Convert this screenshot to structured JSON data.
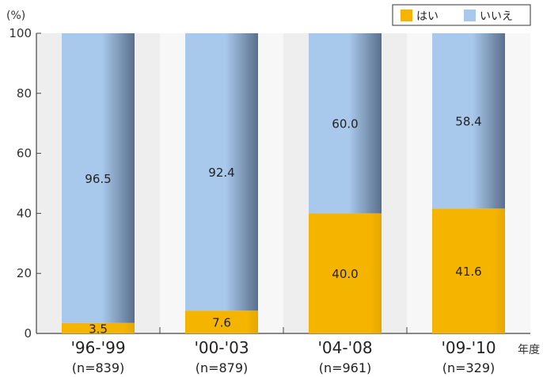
{
  "chart_data": {
    "type": "bar",
    "stacked": true,
    "y_unit": "(%)",
    "x_unit": "年度",
    "ylim": [
      0,
      100
    ],
    "y_ticks": [
      "0",
      "20",
      "40",
      "60",
      "80",
      "100"
    ],
    "categories": [
      "'96-'99",
      "'00-'03",
      "'04-'08",
      "'09-'10"
    ],
    "sample_sizes": [
      "(n=839)",
      "(n=879)",
      "(n=961)",
      "(n=329)"
    ],
    "series": [
      {
        "name": "はい",
        "color": "#f5b400",
        "values": [
          3.5,
          7.6,
          40.0,
          41.6
        ],
        "labels": [
          "3.5",
          "7.6",
          "40.0",
          "41.6"
        ]
      },
      {
        "name": "いいえ",
        "color": "#a9c9ec",
        "values": [
          96.5,
          92.4,
          60.0,
          58.4
        ],
        "labels": [
          "96.5",
          "92.4",
          "60.0",
          "58.4"
        ]
      }
    ],
    "legend_position": "top-right",
    "grid": false
  }
}
